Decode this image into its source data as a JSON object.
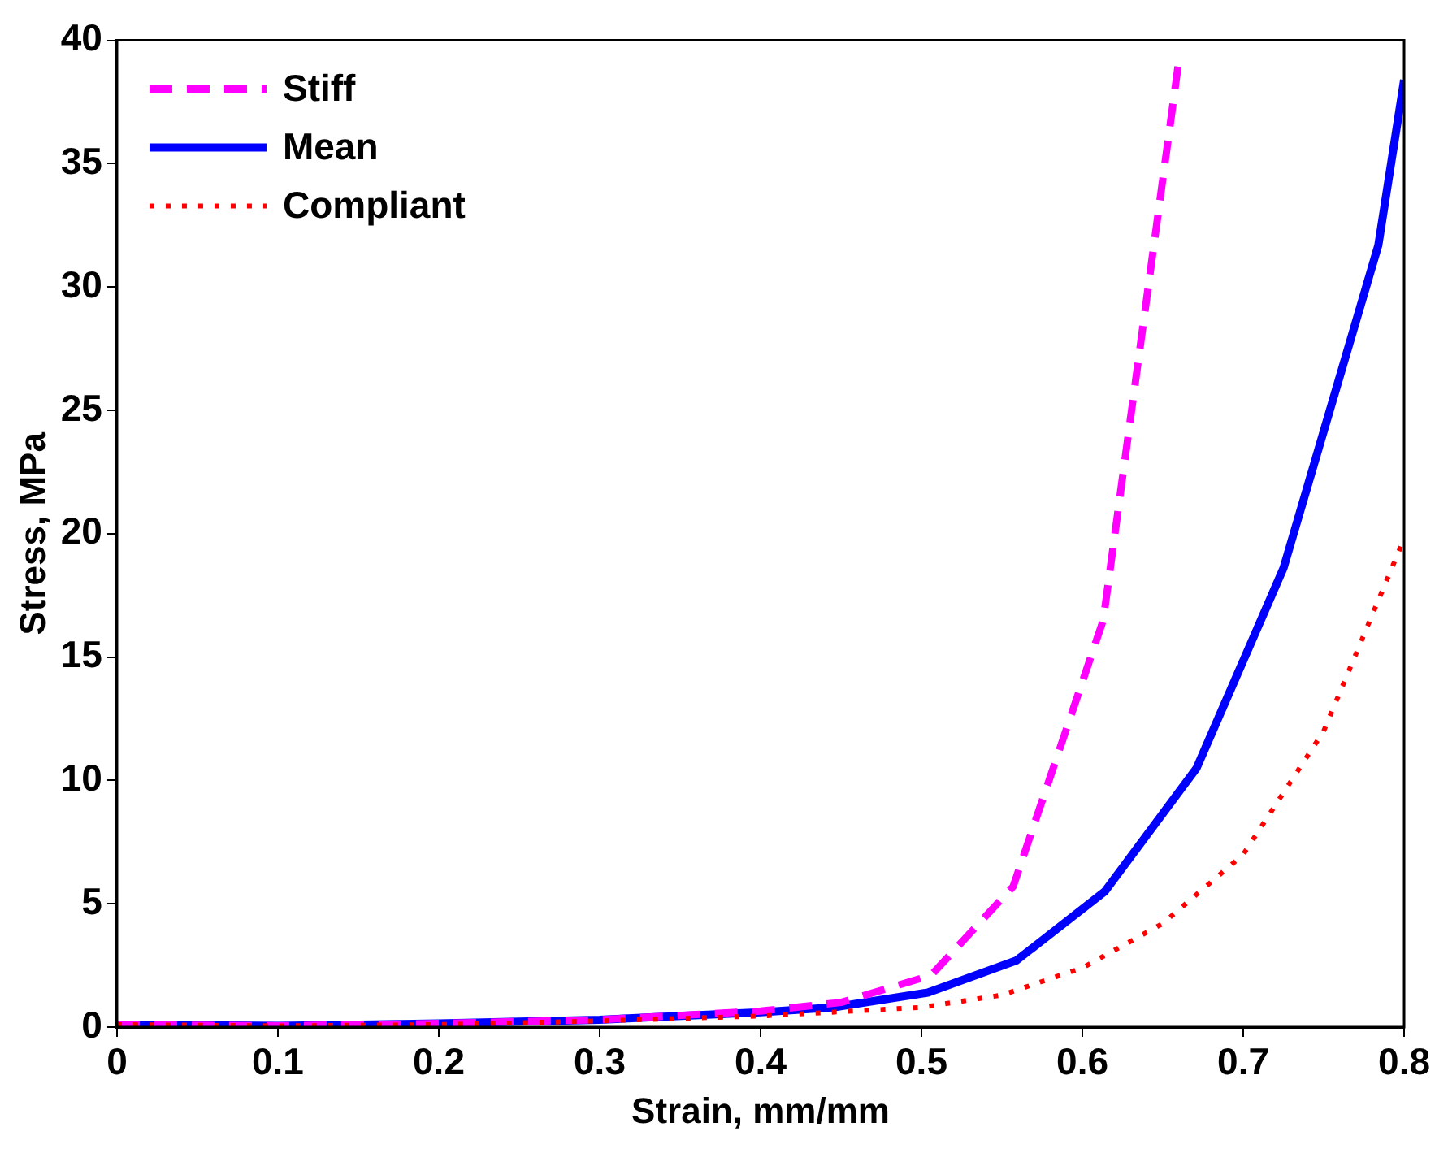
{
  "chart_data": {
    "type": "line",
    "xlabel": "Strain, mm/mm",
    "ylabel": "Stress, MPa",
    "xlim": [
      0,
      0.8
    ],
    "ylim": [
      0,
      40
    ],
    "xticks": [
      0,
      0.1,
      0.2,
      0.3,
      0.4,
      0.5,
      0.6,
      0.7,
      0.8
    ],
    "yticks": [
      0,
      5,
      10,
      15,
      20,
      25,
      30,
      35,
      40
    ],
    "grid": false,
    "legend": "top left",
    "marker": "none",
    "series": [
      {
        "name": "Stiff",
        "color": "#ff00ff",
        "line_style": "dashed",
        "x": [
          0,
          0.1,
          0.2,
          0.3,
          0.4,
          0.45,
          0.506,
          0.557,
          0.613,
          0.66
        ],
        "values": [
          0.1,
          0.05,
          0.15,
          0.3,
          0.65,
          1.0,
          2.1,
          5.7,
          16.5,
          39.2
        ]
      },
      {
        "name": "Mean",
        "color": "#0000ff",
        "line_style": "solid",
        "x": [
          0,
          0.1,
          0.2,
          0.3,
          0.4,
          0.445,
          0.504,
          0.559,
          0.614,
          0.671,
          0.725,
          0.784,
          0.8
        ],
        "values": [
          0.1,
          0.05,
          0.15,
          0.3,
          0.6,
          0.8,
          1.4,
          2.7,
          5.5,
          10.5,
          18.6,
          31.7,
          38.4
        ]
      },
      {
        "name": "Compliant",
        "color": "#ff0000",
        "line_style": "dotted",
        "x": [
          0,
          0.1,
          0.2,
          0.3,
          0.4,
          0.5,
          0.55,
          0.6,
          0.65,
          0.7,
          0.75,
          0.8
        ],
        "values": [
          0.1,
          0.05,
          0.1,
          0.25,
          0.45,
          0.8,
          1.3,
          2.4,
          4.2,
          7.0,
          12.0,
          19.8
        ]
      }
    ]
  }
}
